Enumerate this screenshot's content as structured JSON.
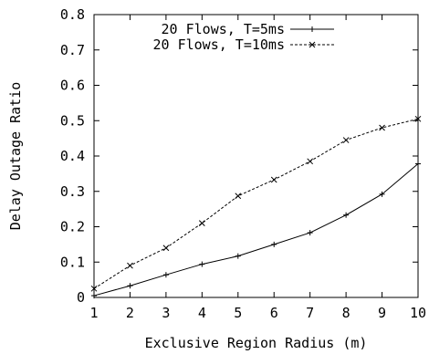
{
  "chart_data": {
    "type": "line",
    "title": "",
    "xlabel": "Exclusive Region Radius (m)",
    "ylabel": "Delay Outage Ratio",
    "xlim": [
      1,
      10
    ],
    "ylim": [
      0,
      0.8
    ],
    "xticks": [
      1,
      2,
      3,
      4,
      5,
      6,
      7,
      8,
      9,
      10
    ],
    "yticks": [
      0,
      0.1,
      0.2,
      0.3,
      0.4,
      0.5,
      0.6,
      0.7,
      0.8
    ],
    "xtick_labels": [
      "1",
      "2",
      "3",
      "4",
      "5",
      "6",
      "7",
      "8",
      "9",
      "10"
    ],
    "ytick_labels": [
      "0",
      "0.1",
      "0.2",
      "0.3",
      "0.4",
      "0.5",
      "0.6",
      "0.7",
      "0.8"
    ],
    "grid": false,
    "legend": "top-left",
    "x": [
      1,
      2,
      3,
      4,
      5,
      6,
      7,
      8,
      9,
      10
    ],
    "series": [
      {
        "name": "20 Flows, T=5ms",
        "marker": "plus",
        "style": "solid",
        "color": "#000000",
        "values": [
          0.005,
          0.033,
          0.064,
          0.094,
          0.117,
          0.15,
          0.183,
          0.233,
          0.292,
          0.378
        ]
      },
      {
        "name": "20 Flows, T=10ms",
        "marker": "cross",
        "style": "dashed",
        "color": "#000000",
        "values": [
          0.025,
          0.09,
          0.14,
          0.21,
          0.287,
          0.333,
          0.385,
          0.445,
          0.48,
          0.505
        ]
      }
    ]
  }
}
